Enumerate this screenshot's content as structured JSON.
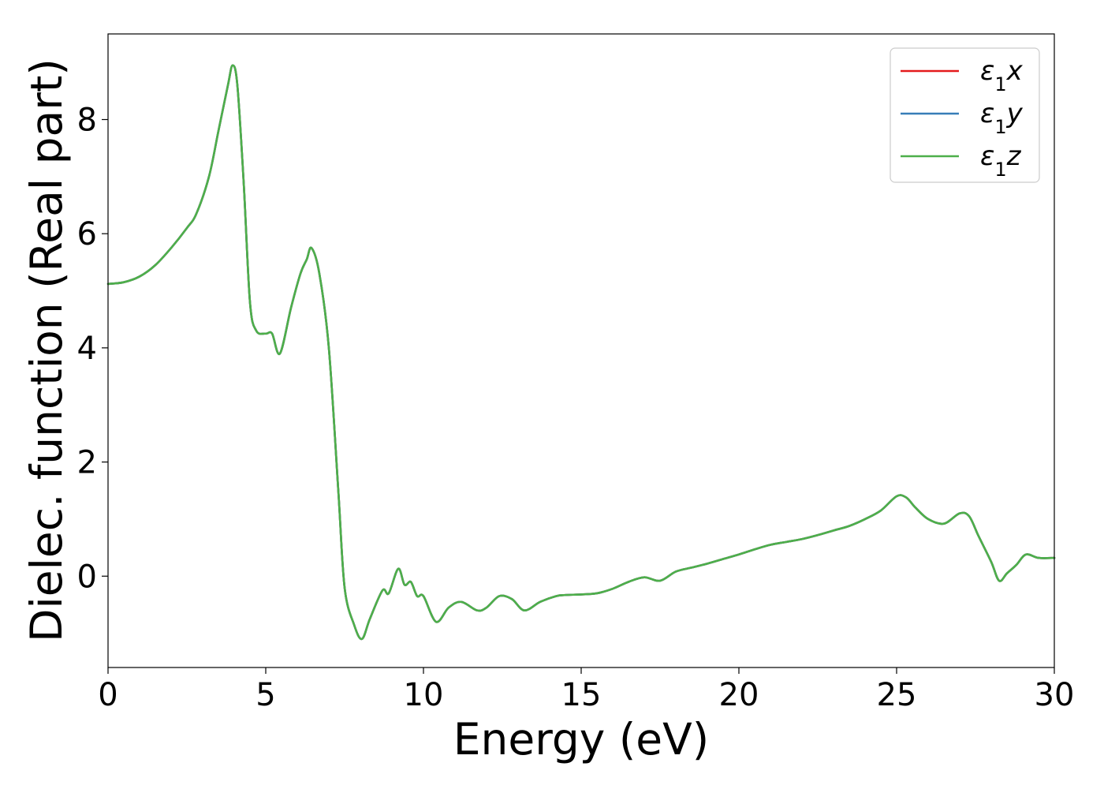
{
  "chart_data": {
    "type": "line",
    "title": "",
    "xlabel": "Energy (eV)",
    "ylabel": "Dielec. function (Real part)",
    "xlim": [
      0,
      30
    ],
    "ylim": [
      -1.6,
      9.5
    ],
    "xticks": [
      0,
      5,
      10,
      15,
      20,
      25,
      30
    ],
    "yticks": [
      0,
      2,
      4,
      6,
      8
    ],
    "grid": false,
    "legend_position": "top-right",
    "x": [
      0,
      0.5,
      1.0,
      1.5,
      2.0,
      2.5,
      2.8,
      3.2,
      3.5,
      3.8,
      3.95,
      4.1,
      4.3,
      4.5,
      4.7,
      5.0,
      5.2,
      5.45,
      5.8,
      6.1,
      6.3,
      6.45,
      6.7,
      7.0,
      7.3,
      7.5,
      7.8,
      8.05,
      8.3,
      8.7,
      8.9,
      9.2,
      9.4,
      9.6,
      9.8,
      10.0,
      10.4,
      10.8,
      11.2,
      11.7,
      12.0,
      12.4,
      12.8,
      13.2,
      13.7,
      14.2,
      14.5,
      15.0,
      15.5,
      16.0,
      16.5,
      17.0,
      17.5,
      18.0,
      18.5,
      19.0,
      19.5,
      20.0,
      20.5,
      21.0,
      21.5,
      22.0,
      22.5,
      23.0,
      23.5,
      24.0,
      24.5,
      25.0,
      25.3,
      25.6,
      26.0,
      26.5,
      27.0,
      27.3,
      27.6,
      28.0,
      28.25,
      28.5,
      28.8,
      29.1,
      29.5,
      30.0
    ],
    "series": [
      {
        "name": "ε1x",
        "color": "#e41a1c",
        "y": [
          5.12,
          5.15,
          5.25,
          5.45,
          5.75,
          6.1,
          6.35,
          7.0,
          7.8,
          8.6,
          8.95,
          8.6,
          6.9,
          4.8,
          4.3,
          4.25,
          4.25,
          3.9,
          4.7,
          5.3,
          5.55,
          5.75,
          5.3,
          4.0,
          1.5,
          -0.2,
          -0.85,
          -1.1,
          -0.75,
          -0.25,
          -0.3,
          0.13,
          -0.15,
          -0.1,
          -0.35,
          -0.35,
          -0.8,
          -0.55,
          -0.45,
          -0.6,
          -0.55,
          -0.35,
          -0.4,
          -0.6,
          -0.45,
          -0.35,
          -0.33,
          -0.32,
          -0.3,
          -0.22,
          -0.1,
          -0.02,
          -0.08,
          0.08,
          0.15,
          0.22,
          0.3,
          0.38,
          0.47,
          0.55,
          0.6,
          0.65,
          0.72,
          0.8,
          0.88,
          1.0,
          1.15,
          1.4,
          1.38,
          1.2,
          1.0,
          0.92,
          1.1,
          1.05,
          0.7,
          0.25,
          -0.08,
          0.05,
          0.2,
          0.38,
          0.32,
          0.32
        ]
      },
      {
        "name": "ε1y",
        "color": "#377eb8",
        "y": [
          5.12,
          5.15,
          5.25,
          5.45,
          5.75,
          6.1,
          6.35,
          7.0,
          7.8,
          8.6,
          8.95,
          8.6,
          6.9,
          4.8,
          4.3,
          4.25,
          4.25,
          3.9,
          4.7,
          5.3,
          5.55,
          5.75,
          5.3,
          4.0,
          1.5,
          -0.2,
          -0.85,
          -1.1,
          -0.75,
          -0.25,
          -0.3,
          0.13,
          -0.15,
          -0.1,
          -0.35,
          -0.35,
          -0.8,
          -0.55,
          -0.45,
          -0.6,
          -0.55,
          -0.35,
          -0.4,
          -0.6,
          -0.45,
          -0.35,
          -0.33,
          -0.32,
          -0.3,
          -0.22,
          -0.1,
          -0.02,
          -0.08,
          0.08,
          0.15,
          0.22,
          0.3,
          0.38,
          0.47,
          0.55,
          0.6,
          0.65,
          0.72,
          0.8,
          0.88,
          1.0,
          1.15,
          1.4,
          1.38,
          1.2,
          1.0,
          0.92,
          1.1,
          1.05,
          0.7,
          0.25,
          -0.08,
          0.05,
          0.2,
          0.38,
          0.32,
          0.32
        ]
      },
      {
        "name": "ε1z",
        "color": "#4daf4a",
        "y": [
          5.12,
          5.15,
          5.25,
          5.45,
          5.75,
          6.1,
          6.35,
          7.0,
          7.8,
          8.6,
          8.95,
          8.6,
          6.9,
          4.8,
          4.3,
          4.25,
          4.25,
          3.9,
          4.7,
          5.3,
          5.55,
          5.75,
          5.3,
          4.0,
          1.5,
          -0.2,
          -0.85,
          -1.1,
          -0.75,
          -0.25,
          -0.3,
          0.13,
          -0.15,
          -0.1,
          -0.35,
          -0.35,
          -0.8,
          -0.55,
          -0.45,
          -0.6,
          -0.55,
          -0.35,
          -0.4,
          -0.6,
          -0.45,
          -0.35,
          -0.33,
          -0.32,
          -0.3,
          -0.22,
          -0.1,
          -0.02,
          -0.08,
          0.08,
          0.15,
          0.22,
          0.3,
          0.38,
          0.47,
          0.55,
          0.6,
          0.65,
          0.72,
          0.8,
          0.88,
          1.0,
          1.15,
          1.4,
          1.38,
          1.2,
          1.0,
          0.92,
          1.1,
          1.05,
          0.7,
          0.25,
          -0.08,
          0.05,
          0.2,
          0.38,
          0.32,
          0.32
        ]
      }
    ]
  },
  "legend": [
    {
      "symbol": "ε",
      "sub": "1",
      "axis": "x"
    },
    {
      "symbol": "ε",
      "sub": "1",
      "axis": "y"
    },
    {
      "symbol": "ε",
      "sub": "1",
      "axis": "z"
    }
  ]
}
